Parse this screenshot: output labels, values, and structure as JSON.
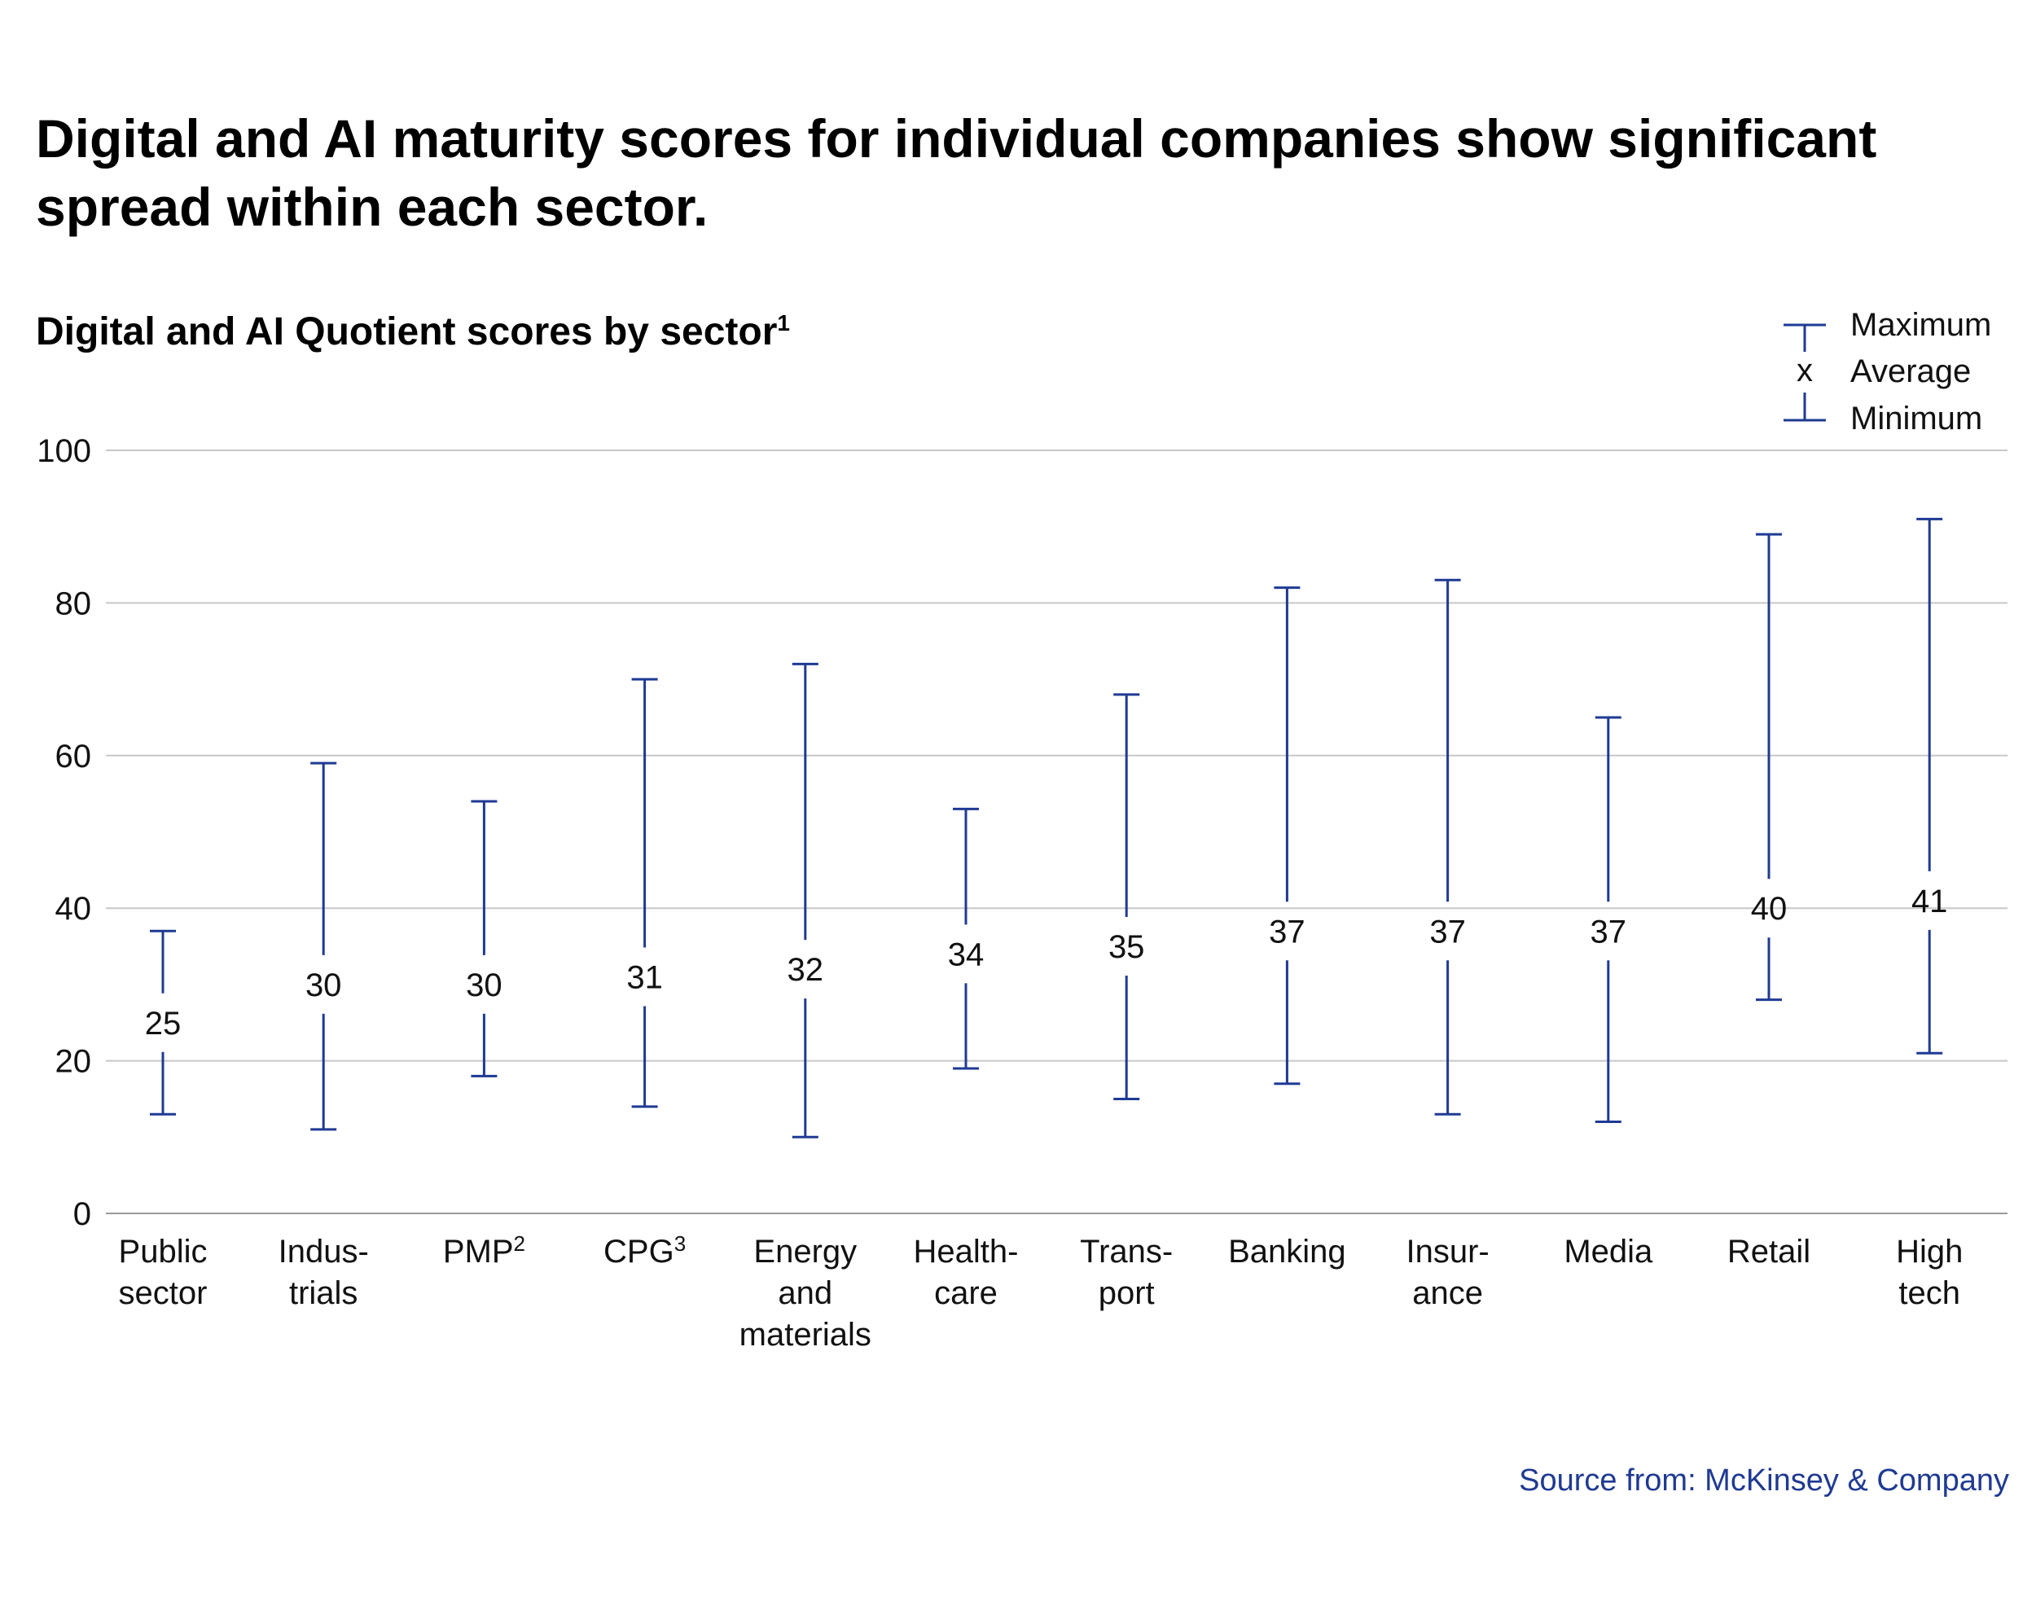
{
  "header": {
    "title": "Digital and AI maturity scores for individual companies show significant spread within each sector.",
    "subtitle": "Digital and AI Quotient scores by sector",
    "subtitle_note": "1"
  },
  "source": "Source from: McKinsey & Company",
  "colors": {
    "series": "#1f3a93",
    "grid": "#c8c8c8",
    "axis": "#9a9a9a"
  },
  "chart_data": {
    "type": "range",
    "title": "Digital and AI Quotient scores by sector",
    "ylim": [
      0,
      100
    ],
    "yticks": [
      "0",
      "20",
      "40",
      "60",
      "80",
      "100"
    ],
    "grid": true,
    "legend_position": "top-right",
    "legend": {
      "max": "Maximum",
      "avg_marker": "x",
      "avg": "Average",
      "min": "Minimum"
    },
    "categories": [
      {
        "lines": [
          "Public",
          "sector"
        ]
      },
      {
        "lines": [
          "Indus-",
          "trials"
        ]
      },
      {
        "lines": [
          "PMP"
        ],
        "sup": "2"
      },
      {
        "lines": [
          "CPG"
        ],
        "sup": "3"
      },
      {
        "lines": [
          "Energy",
          "and",
          "materials"
        ]
      },
      {
        "lines": [
          "Health-",
          "care"
        ]
      },
      {
        "lines": [
          "Trans-",
          "port"
        ]
      },
      {
        "lines": [
          "Banking"
        ]
      },
      {
        "lines": [
          "Insur-",
          "ance"
        ]
      },
      {
        "lines": [
          "Media"
        ]
      },
      {
        "lines": [
          "Retail"
        ]
      },
      {
        "lines": [
          "High",
          "tech"
        ]
      }
    ],
    "series": [
      {
        "name": "Maximum",
        "values": [
          37,
          59,
          54,
          70,
          72,
          53,
          68,
          82,
          83,
          65,
          89,
          91
        ]
      },
      {
        "name": "Average",
        "values": [
          25,
          30,
          30,
          31,
          32,
          34,
          35,
          37,
          37,
          37,
          40,
          41
        ]
      },
      {
        "name": "Minimum",
        "values": [
          13,
          11,
          18,
          14,
          10,
          19,
          15,
          17,
          13,
          12,
          28,
          21
        ]
      }
    ]
  }
}
